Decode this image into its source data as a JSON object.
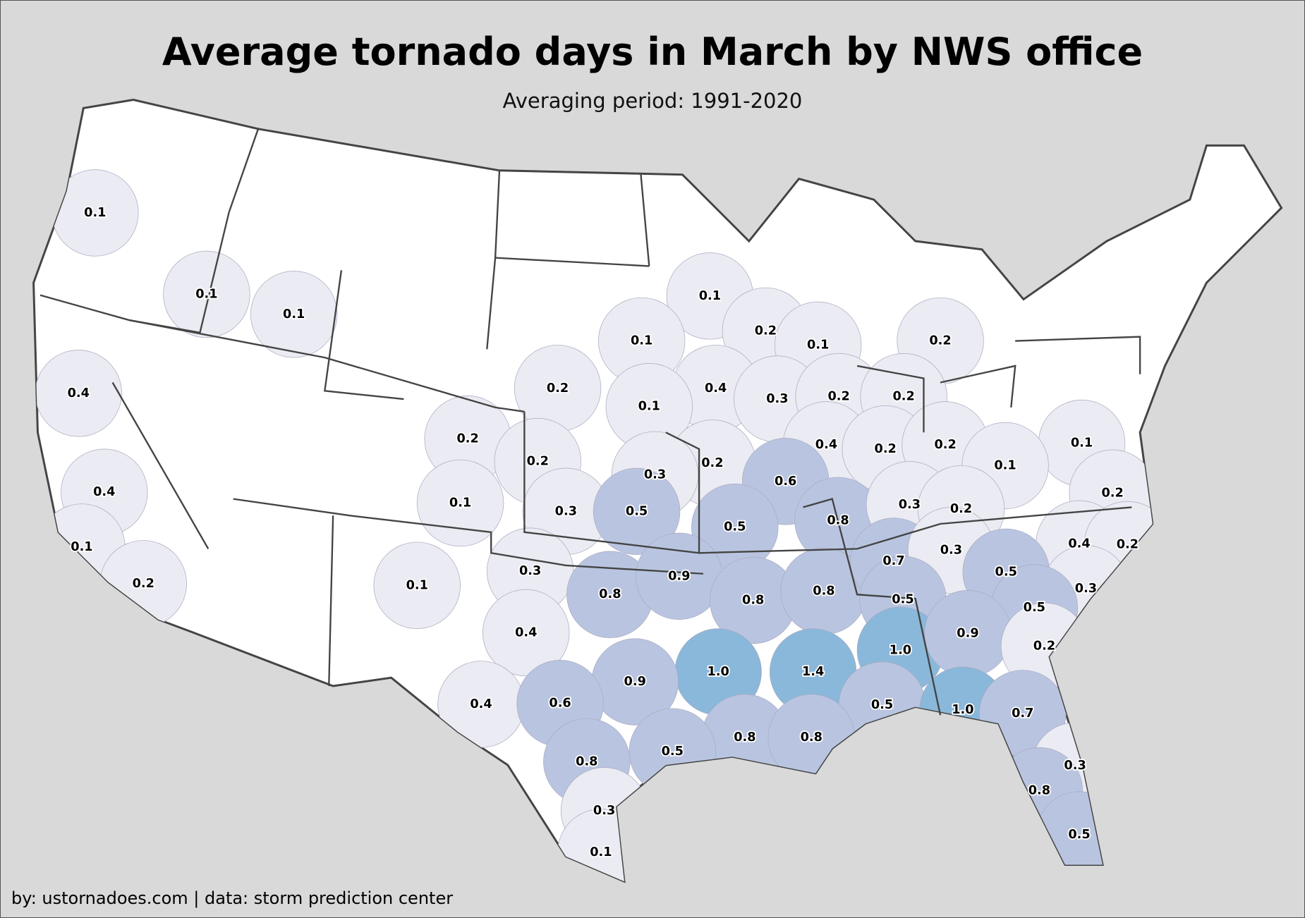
{
  "title": "Average tornado days in March by NWS office",
  "subtitle": "Averaging period: 1991-2020",
  "credit": "by: ustornadoes.com | data: storm prediction center",
  "colors": {
    "background": "#d9d9d9",
    "low": "#ebebf3",
    "mid": "#b9c5e0",
    "high": "#8ab8da",
    "none": "#ffffff",
    "border": "#444444"
  },
  "chart_data": {
    "type": "choropleth",
    "unit": "average tornado days",
    "offices": [
      {
        "value": "0.1"
      },
      {
        "value": "0.1"
      },
      {
        "value": "0.1"
      },
      {
        "value": "0.4"
      },
      {
        "value": "0.4"
      },
      {
        "value": "0.1"
      },
      {
        "value": "0.2"
      },
      {
        "value": "0.1"
      },
      {
        "value": "0.2"
      },
      {
        "value": "0.1"
      },
      {
        "value": "0.1"
      },
      {
        "value": "0.2"
      },
      {
        "value": "0.2"
      },
      {
        "value": "0.4"
      },
      {
        "value": "0.3"
      },
      {
        "value": "0.2"
      },
      {
        "value": "0.2"
      },
      {
        "value": "0.1"
      },
      {
        "value": "0.2"
      },
      {
        "value": "0.2"
      },
      {
        "value": "0.2"
      },
      {
        "value": "0.4"
      },
      {
        "value": "0.2"
      },
      {
        "value": "0.2"
      },
      {
        "value": "0.1"
      },
      {
        "value": "0.1"
      },
      {
        "value": "0.3"
      },
      {
        "value": "0.6"
      },
      {
        "value": "0.1"
      },
      {
        "value": "0.3"
      },
      {
        "value": "0.5"
      },
      {
        "value": "0.5"
      },
      {
        "value": "0.8"
      },
      {
        "value": "0.3"
      },
      {
        "value": "0.2"
      },
      {
        "value": "0.2"
      },
      {
        "value": "0.4"
      },
      {
        "value": "0.2"
      },
      {
        "value": "0.3"
      },
      {
        "value": "0.1"
      },
      {
        "value": "0.8"
      },
      {
        "value": "0.9"
      },
      {
        "value": "0.8"
      },
      {
        "value": "0.8"
      },
      {
        "value": "0.7"
      },
      {
        "value": "0.3"
      },
      {
        "value": "0.5"
      },
      {
        "value": "0.3"
      },
      {
        "value": "0.5"
      },
      {
        "value": "0.5"
      },
      {
        "value": "0.4"
      },
      {
        "value": "1.0"
      },
      {
        "value": "1.4"
      },
      {
        "value": "1.0"
      },
      {
        "value": "0.9"
      },
      {
        "value": "0.2"
      },
      {
        "value": "0.9"
      },
      {
        "value": "0.4"
      },
      {
        "value": "0.6"
      },
      {
        "value": "0.5"
      },
      {
        "value": "1.0"
      },
      {
        "value": "0.7"
      },
      {
        "value": "0.8"
      },
      {
        "value": "0.8"
      },
      {
        "value": "0.5"
      },
      {
        "value": "0.8"
      },
      {
        "value": "0.3"
      },
      {
        "value": "0.3"
      },
      {
        "value": "0.8"
      },
      {
        "value": "0.1"
      },
      {
        "value": "0.5"
      }
    ]
  }
}
